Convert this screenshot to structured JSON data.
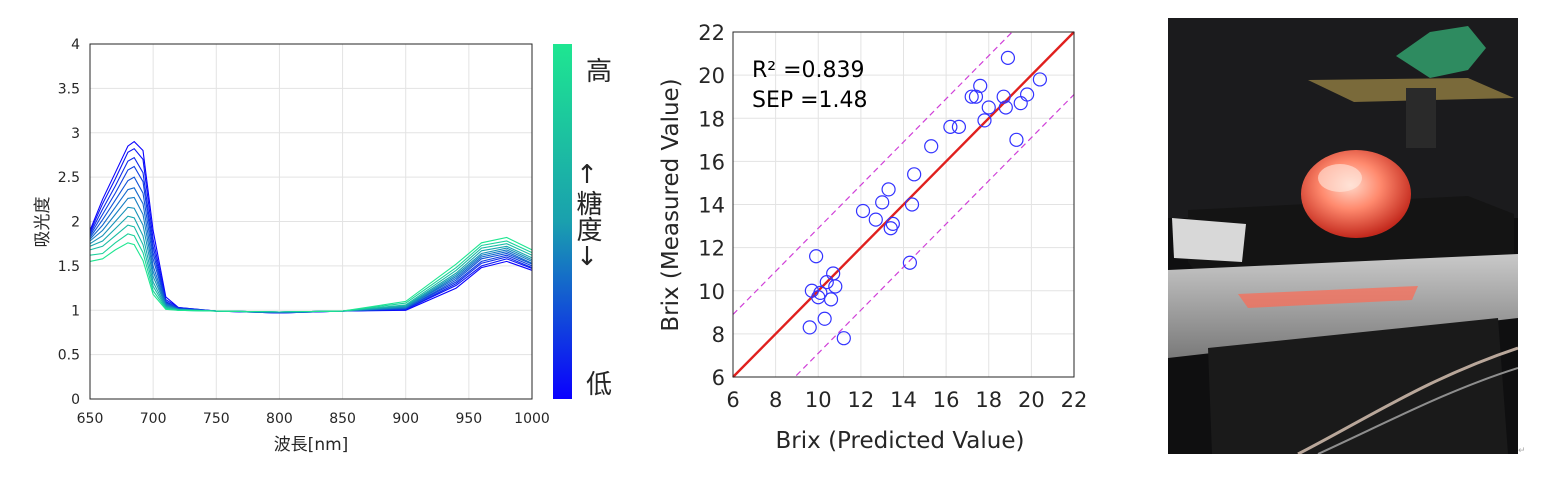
{
  "spectra_chart": {
    "xlabel": "波長[nm]",
    "ylabel": "吸光度",
    "colorbar": {
      "top_label": "高",
      "mid_label": "↑糖度↓",
      "bottom_label": "低",
      "color_low": "#0a00ff",
      "color_high": "#1ee691"
    }
  },
  "scatter_chart": {
    "annotation_r2": "R² =0.839",
    "annotation_sep": "SEP =1.48",
    "colors": {
      "points": "#3333ff",
      "fit_line": "#e0201e",
      "band_lines": "#d040d8"
    }
  },
  "photo": {
    "icon": "fruit-on-sensor-photo"
  },
  "chart_data": [
    {
      "type": "line",
      "xlabel": "波長[nm]",
      "ylabel": "吸光度",
      "xlim": [
        650,
        1000
      ],
      "ylim": [
        0,
        4
      ],
      "x_ticks": [
        650,
        700,
        750,
        800,
        850,
        900,
        950,
        1000
      ],
      "y_ticks": [
        0,
        0.5,
        1,
        1.5,
        2,
        2.5,
        3,
        3.5,
        4
      ],
      "grid": true,
      "x": [
        650,
        660,
        670,
        680,
        685,
        692,
        700,
        710,
        720,
        750,
        800,
        850,
        900,
        940,
        960,
        980,
        1000
      ],
      "series": [
        {
          "values": [
            1.9,
            2.25,
            2.55,
            2.85,
            2.9,
            2.8,
            1.9,
            1.15,
            1.03,
            0.99,
            0.97,
            0.99,
            1.0,
            1.25,
            1.48,
            1.55,
            1.45
          ]
        },
        {
          "values": [
            1.88,
            2.2,
            2.48,
            2.78,
            2.82,
            2.7,
            1.8,
            1.12,
            1.03,
            0.99,
            0.97,
            0.99,
            1.01,
            1.28,
            1.5,
            1.58,
            1.47
          ]
        },
        {
          "values": [
            1.86,
            2.14,
            2.4,
            2.68,
            2.72,
            2.55,
            1.72,
            1.1,
            1.02,
            0.99,
            0.97,
            0.99,
            1.01,
            1.3,
            1.53,
            1.6,
            1.48
          ]
        },
        {
          "values": [
            1.84,
            2.08,
            2.32,
            2.58,
            2.62,
            2.45,
            1.65,
            1.09,
            1.02,
            0.99,
            0.98,
            0.99,
            1.02,
            1.32,
            1.55,
            1.62,
            1.5
          ]
        },
        {
          "values": [
            1.82,
            2.02,
            2.24,
            2.46,
            2.5,
            2.32,
            1.58,
            1.08,
            1.02,
            0.99,
            0.98,
            0.99,
            1.02,
            1.34,
            1.58,
            1.64,
            1.52
          ]
        },
        {
          "values": [
            1.8,
            1.96,
            2.16,
            2.36,
            2.38,
            2.2,
            1.5,
            1.07,
            1.01,
            0.99,
            0.98,
            0.99,
            1.03,
            1.36,
            1.6,
            1.66,
            1.53
          ]
        },
        {
          "values": [
            1.78,
            1.9,
            2.08,
            2.26,
            2.27,
            2.08,
            1.44,
            1.06,
            1.01,
            0.99,
            0.98,
            0.99,
            1.03,
            1.38,
            1.62,
            1.68,
            1.55
          ]
        },
        {
          "values": [
            1.75,
            1.84,
            2.0,
            2.16,
            2.15,
            1.96,
            1.38,
            1.05,
            1.01,
            0.99,
            0.98,
            0.99,
            1.04,
            1.4,
            1.64,
            1.7,
            1.57
          ]
        },
        {
          "values": [
            1.72,
            1.78,
            1.92,
            2.06,
            2.04,
            1.84,
            1.32,
            1.04,
            1.01,
            0.99,
            0.98,
            0.99,
            1.05,
            1.42,
            1.67,
            1.72,
            1.59
          ]
        },
        {
          "values": [
            1.68,
            1.72,
            1.84,
            1.96,
            1.94,
            1.74,
            1.27,
            1.03,
            1.0,
            0.99,
            0.98,
            0.99,
            1.06,
            1.45,
            1.7,
            1.75,
            1.62
          ]
        },
        {
          "values": [
            1.62,
            1.64,
            1.76,
            1.86,
            1.84,
            1.65,
            1.22,
            1.02,
            1.0,
            0.99,
            0.98,
            0.99,
            1.08,
            1.48,
            1.73,
            1.78,
            1.65
          ]
        },
        {
          "values": [
            1.55,
            1.58,
            1.68,
            1.76,
            1.74,
            1.56,
            1.18,
            1.01,
            1.0,
            0.99,
            0.98,
            0.99,
            1.1,
            1.52,
            1.76,
            1.82,
            1.68
          ]
        }
      ]
    },
    {
      "type": "scatter",
      "xlabel": "Brix (Predicted Value)",
      "ylabel": "Brix (Measured Value)",
      "xlim": [
        6,
        22
      ],
      "ylim": [
        6,
        22
      ],
      "x_ticks": [
        6,
        8,
        10,
        12,
        14,
        16,
        18,
        20,
        22
      ],
      "y_ticks": [
        6,
        8,
        10,
        12,
        14,
        16,
        18,
        20,
        22
      ],
      "grid": true,
      "fit_line": [
        [
          6,
          6
        ],
        [
          22,
          22
        ]
      ],
      "band_offset": 2.9,
      "points": [
        [
          9.6,
          8.3
        ],
        [
          10.3,
          8.7
        ],
        [
          11.2,
          7.8
        ],
        [
          9.7,
          10.0
        ],
        [
          9.9,
          11.6
        ],
        [
          10.0,
          9.7
        ],
        [
          10.1,
          9.9
        ],
        [
          10.4,
          10.4
        ],
        [
          10.6,
          9.6
        ],
        [
          10.7,
          10.8
        ],
        [
          10.8,
          10.2
        ],
        [
          12.1,
          13.7
        ],
        [
          12.7,
          13.3
        ],
        [
          13.0,
          14.1
        ],
        [
          13.3,
          14.7
        ],
        [
          13.4,
          12.9
        ],
        [
          13.5,
          13.1
        ],
        [
          14.3,
          11.3
        ],
        [
          14.4,
          14.0
        ],
        [
          14.5,
          15.4
        ],
        [
          15.3,
          16.7
        ],
        [
          16.2,
          17.6
        ],
        [
          16.6,
          17.6
        ],
        [
          17.2,
          19.0
        ],
        [
          17.4,
          19.0
        ],
        [
          17.6,
          19.5
        ],
        [
          17.8,
          17.9
        ],
        [
          18.0,
          18.5
        ],
        [
          18.7,
          19.0
        ],
        [
          18.8,
          18.5
        ],
        [
          18.9,
          20.8
        ],
        [
          19.3,
          17.0
        ],
        [
          19.5,
          18.7
        ],
        [
          19.8,
          19.1
        ],
        [
          20.4,
          19.8
        ]
      ]
    }
  ]
}
